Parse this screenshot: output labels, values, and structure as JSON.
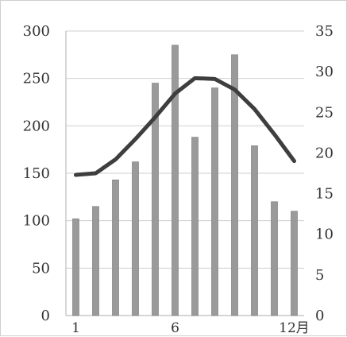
{
  "chart_data": {
    "type": "bar",
    "title": "",
    "xlabel": "",
    "ylabel": "",
    "x_ticks": [
      {
        "position": 1,
        "label": "1"
      },
      {
        "position": 6,
        "label": "6"
      },
      {
        "position": 12,
        "label": "12月"
      }
    ],
    "left_axis": {
      "min": 0,
      "max": 300,
      "ticks": [
        "0",
        "50",
        "100",
        "150",
        "200",
        "250",
        "300"
      ]
    },
    "right_axis": {
      "min": 0,
      "max": 35,
      "ticks": [
        "0",
        "5",
        "10",
        "15",
        "20",
        "25",
        "30",
        "35"
      ]
    },
    "series": [
      {
        "type": "bar",
        "axis": "left",
        "x": [
          1,
          2,
          3,
          4,
          5,
          6,
          7,
          8,
          9,
          10,
          11,
          12
        ],
        "values": [
          102,
          115,
          143,
          162,
          245,
          285,
          188,
          240,
          275,
          179,
          120,
          110
        ]
      },
      {
        "type": "line",
        "axis": "right",
        "x": [
          1,
          2,
          3,
          4,
          5,
          6,
          7,
          8,
          9,
          10,
          11,
          12
        ],
        "values": [
          17.3,
          17.5,
          19.2,
          21.7,
          24.4,
          27.3,
          29.2,
          29.1,
          27.8,
          25.4,
          22.3,
          19
        ]
      }
    ],
    "grid": true,
    "colors": {
      "bars": "#9a9a9a",
      "line": "#3e3e3e",
      "grid": "#cfcfcf"
    }
  }
}
